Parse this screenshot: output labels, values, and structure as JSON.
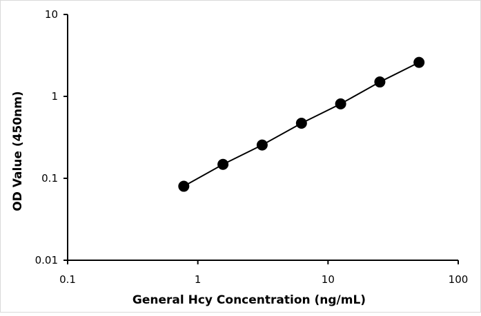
{
  "chart_data": {
    "type": "scatter",
    "title": "",
    "xlabel": "General Hcy Concentration (ng/mL)",
    "ylabel": "OD Value (450nm)",
    "x_scale": "log",
    "y_scale": "log",
    "xlim": [
      0.1,
      100
    ],
    "ylim": [
      0.01,
      10
    ],
    "x_ticks": [
      "0.1",
      "1",
      "10",
      "100"
    ],
    "y_ticks": [
      "0.01",
      "0.1",
      "1",
      "10"
    ],
    "grid": false,
    "legend": "none",
    "series": [
      {
        "x": [
          0.78,
          1.56,
          3.12,
          6.25,
          12.5,
          25,
          50
        ],
        "y": [
          0.08,
          0.148,
          0.255,
          0.47,
          0.81,
          1.5,
          2.6
        ],
        "marker": "circle",
        "line": true,
        "color": "#000000"
      }
    ]
  }
}
